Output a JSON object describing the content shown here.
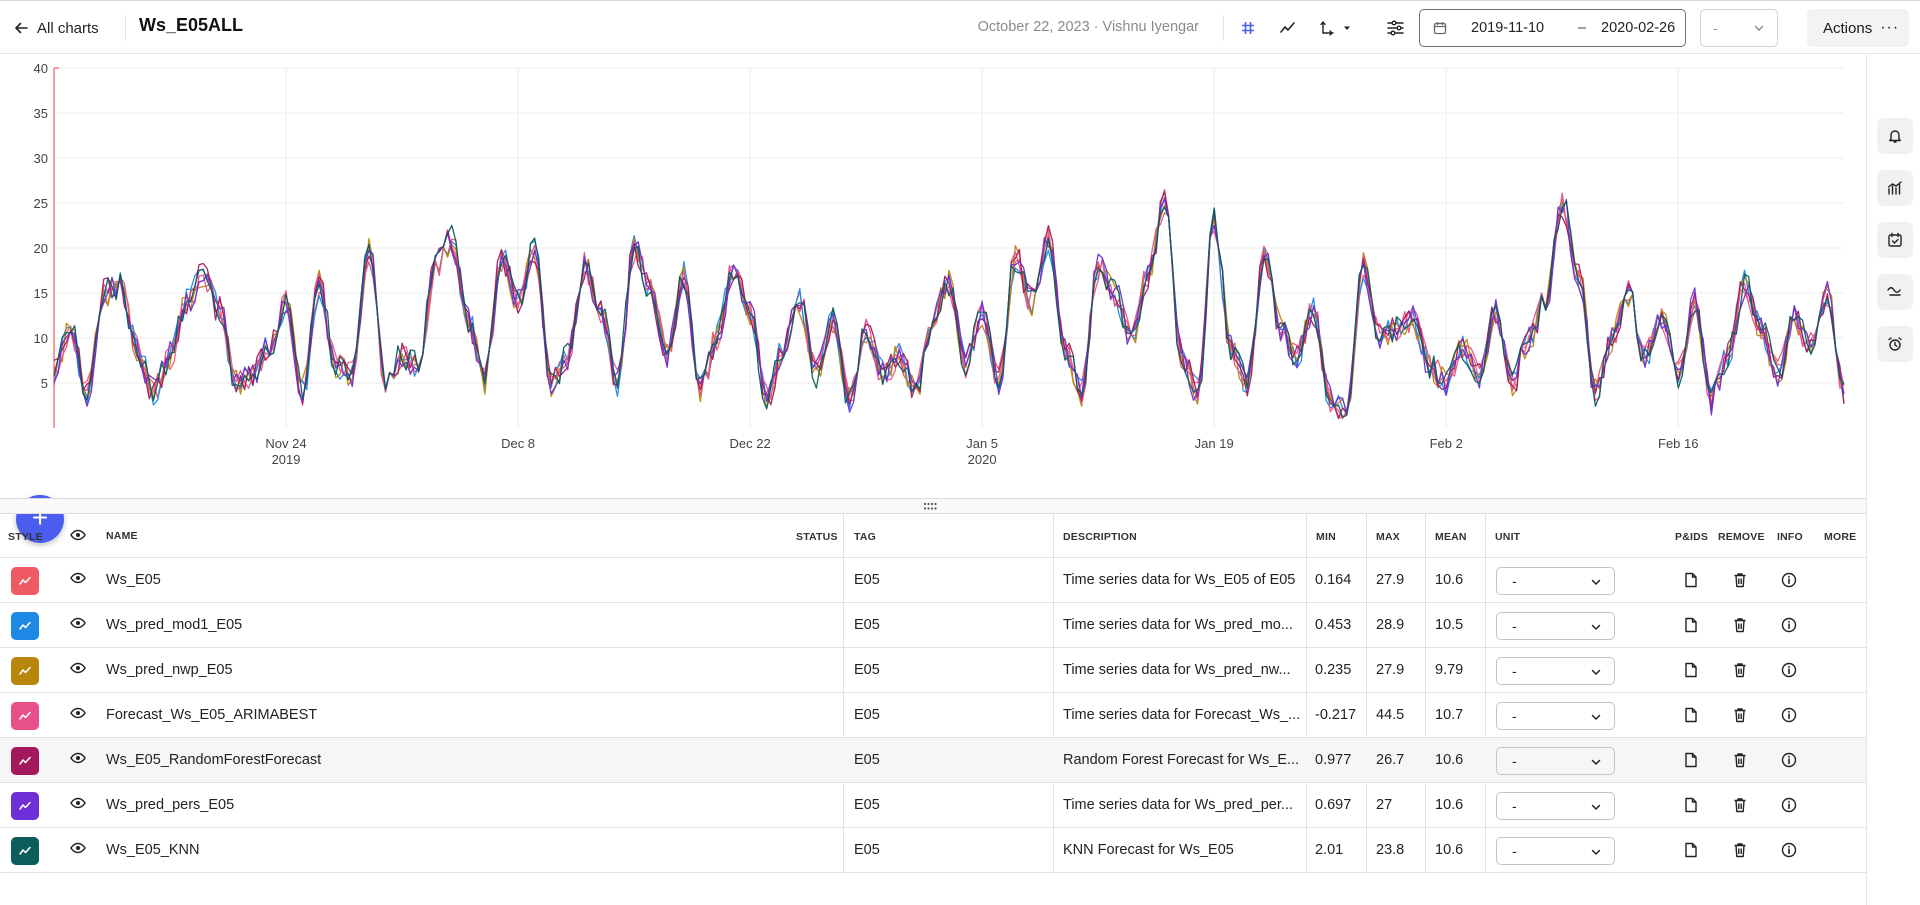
{
  "header": {
    "back_label": "All charts",
    "title": "Ws_E05ALL",
    "meta": "October 22, 2023 · Vishnu Iyengar",
    "date_from": "2019-11-10",
    "date_separator": "–",
    "date_to": "2020-02-26",
    "aggregation_value": "-",
    "actions_label": "Actions",
    "actions_dots": "···"
  },
  "chart_data": {
    "type": "line",
    "x_range": [
      "2019-11-10",
      "2020-02-26"
    ],
    "ylim": [
      0,
      40
    ],
    "y_ticks": [
      5,
      10,
      15,
      20,
      25,
      30,
      35,
      40
    ],
    "y_tick_labels": [
      "5",
      "10",
      "15",
      "20",
      "25",
      "30",
      "35",
      "40"
    ],
    "x_ticks": [
      {
        "date": "2019-11-24",
        "label": "Nov 24",
        "sublabel": "2019"
      },
      {
        "date": "2019-12-08",
        "label": "Dec 8",
        "sublabel": ""
      },
      {
        "date": "2019-12-22",
        "label": "Dec 22",
        "sublabel": ""
      },
      {
        "date": "2020-01-05",
        "label": "Jan 5",
        "sublabel": "2020"
      },
      {
        "date": "2020-01-19",
        "label": "Jan 19",
        "sublabel": ""
      },
      {
        "date": "2020-02-02",
        "label": "Feb 2",
        "sublabel": ""
      },
      {
        "date": "2020-02-16",
        "label": "Feb 16",
        "sublabel": ""
      }
    ],
    "grid": true,
    "base_series": {
      "x": [
        "2019-11-10",
        "2019-11-11",
        "2019-11-12",
        "2019-11-13",
        "2019-11-14",
        "2019-11-15",
        "2019-11-16",
        "2019-11-17",
        "2019-11-18",
        "2019-11-19",
        "2019-11-20",
        "2019-11-21",
        "2019-11-22",
        "2019-11-23",
        "2019-11-24",
        "2019-11-25",
        "2019-11-26",
        "2019-11-27",
        "2019-11-28",
        "2019-11-29",
        "2019-11-30",
        "2019-12-01",
        "2019-12-02",
        "2019-12-03",
        "2019-12-04",
        "2019-12-05",
        "2019-12-06",
        "2019-12-07",
        "2019-12-08",
        "2019-12-09",
        "2019-12-10",
        "2019-12-11",
        "2019-12-12",
        "2019-12-13",
        "2019-12-14",
        "2019-12-15",
        "2019-12-16",
        "2019-12-17",
        "2019-12-18",
        "2019-12-19",
        "2019-12-20",
        "2019-12-21",
        "2019-12-22",
        "2019-12-23",
        "2019-12-24",
        "2019-12-25",
        "2019-12-26",
        "2019-12-27",
        "2019-12-28",
        "2019-12-29",
        "2019-12-30",
        "2019-12-31",
        "2020-01-01",
        "2020-01-02",
        "2020-01-03",
        "2020-01-04",
        "2020-01-05",
        "2020-01-06",
        "2020-01-07",
        "2020-01-08",
        "2020-01-09",
        "2020-01-10",
        "2020-01-11",
        "2020-01-12",
        "2020-01-13",
        "2020-01-14",
        "2020-01-15",
        "2020-01-16",
        "2020-01-17",
        "2020-01-18",
        "2020-01-19",
        "2020-01-20",
        "2020-01-21",
        "2020-01-22",
        "2020-01-23",
        "2020-01-24",
        "2020-01-25",
        "2020-01-26",
        "2020-01-27",
        "2020-01-28",
        "2020-01-29",
        "2020-01-30",
        "2020-01-31",
        "2020-02-01",
        "2020-02-02",
        "2020-02-03",
        "2020-02-04",
        "2020-02-05",
        "2020-02-06",
        "2020-02-07",
        "2020-02-08",
        "2020-02-09",
        "2020-02-10",
        "2020-02-11",
        "2020-02-12",
        "2020-02-13",
        "2020-02-14",
        "2020-02-15",
        "2020-02-16",
        "2020-02-17",
        "2020-02-18",
        "2020-02-19",
        "2020-02-20",
        "2020-02-21",
        "2020-02-22",
        "2020-02-23",
        "2020-02-24",
        "2020-02-25",
        "2020-02-26"
      ],
      "y": [
        6,
        11,
        4,
        15,
        16,
        9,
        4,
        8,
        14,
        17,
        13,
        5,
        6,
        9,
        14,
        4,
        16,
        7,
        6,
        20,
        5,
        8,
        7,
        18,
        21,
        12,
        5,
        19,
        14,
        20,
        5,
        8,
        18,
        13,
        5,
        20,
        15,
        8,
        17,
        4,
        10,
        18,
        13,
        3,
        9,
        14,
        6,
        12,
        3,
        11,
        6,
        8,
        4,
        12,
        16,
        7,
        13,
        5,
        19,
        14,
        21,
        9,
        4,
        18,
        15,
        10,
        17,
        25,
        8,
        4,
        23,
        9,
        5,
        19,
        11,
        8,
        13,
        3,
        2,
        18,
        10,
        11,
        12,
        7,
        5,
        9,
        6,
        13,
        5,
        10,
        14,
        25,
        17,
        4,
        10,
        15,
        8,
        12,
        6,
        14,
        3,
        8,
        16,
        11,
        6,
        12,
        9,
        15,
        4
      ]
    },
    "series": [
      {
        "name": "Ws_E05",
        "color": "#f05a63"
      },
      {
        "name": "Ws_pred_mod1_E05",
        "color": "#1e88e5"
      },
      {
        "name": "Ws_pred_nwp_E05",
        "color": "#b8860b"
      },
      {
        "name": "Forecast_Ws_E05_ARIMABEST",
        "color": "#e8508a"
      },
      {
        "name": "Ws_E05_RandomForestForecast",
        "color": "#a3195b"
      },
      {
        "name": "Ws_pred_pers_E05",
        "color": "#6d2fd6"
      },
      {
        "name": "Ws_E05_KNN",
        "color": "#0b5c5a"
      }
    ]
  },
  "table": {
    "headers": {
      "style": "STYLE",
      "name": "NAME",
      "status": "STATUS",
      "tag": "TAG",
      "description": "DESCRIPTION",
      "min": "MIN",
      "max": "MAX",
      "mean": "MEAN",
      "unit": "UNIT",
      "pids": "P&IDS",
      "remove": "REMOVE",
      "info": "INFO",
      "more": "MORE"
    },
    "rows": [
      {
        "name": "Ws_E05",
        "tag": "E05",
        "description": "Time series data for Ws_E05 of E05",
        "min": "0.164",
        "max": "27.9",
        "mean": "10.6",
        "unit": "-",
        "color": "#f05a63"
      },
      {
        "name": "Ws_pred_mod1_E05",
        "tag": "E05",
        "description": "Time series data for Ws_pred_mo...",
        "min": "0.453",
        "max": "28.9",
        "mean": "10.5",
        "unit": "-",
        "color": "#1e88e5"
      },
      {
        "name": "Ws_pred_nwp_E05",
        "tag": "E05",
        "description": "Time series data for Ws_pred_nw...",
        "min": "0.235",
        "max": "27.9",
        "mean": "9.79",
        "unit": "-",
        "color": "#b8860b"
      },
      {
        "name": "Forecast_Ws_E05_ARIMABEST",
        "tag": "E05",
        "description": "Time series data for Forecast_Ws_...",
        "min": "-0.217",
        "max": "44.5",
        "mean": "10.7",
        "unit": "-",
        "color": "#e8508a"
      },
      {
        "name": "Ws_E05_RandomForestForecast",
        "tag": "E05",
        "description": "Random Forest Forecast for Ws_E...",
        "min": "0.977",
        "max": "26.7",
        "mean": "10.6",
        "unit": "-",
        "color": "#a3195b"
      },
      {
        "name": "Ws_pred_pers_E05",
        "tag": "E05",
        "description": "Time series data for Ws_pred_per...",
        "min": "0.697",
        "max": "27",
        "mean": "10.6",
        "unit": "-",
        "color": "#6d2fd6"
      },
      {
        "name": "Ws_E05_KNN",
        "tag": "E05",
        "description": "KNN Forecast for Ws_E05",
        "min": "2.01",
        "max": "23.8",
        "mean": "10.6",
        "unit": "-",
        "color": "#0b5c5a"
      }
    ]
  },
  "add_button_label": "+"
}
